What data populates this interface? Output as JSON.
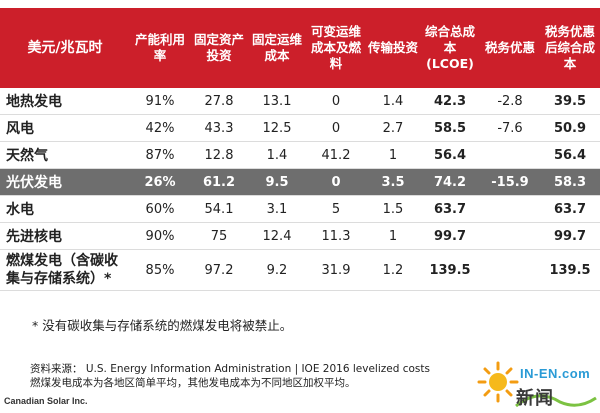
{
  "table": {
    "headers": [
      "美元/兆瓦时",
      "产能利用率",
      "固定资产投资",
      "固定运维成本",
      "可变运维成本及燃料",
      "传输投资",
      "综合总成本(LCOE)",
      "税务优惠",
      "税务优惠后综合成本"
    ],
    "rows": [
      {
        "name": "地热发电",
        "values": [
          "91%",
          "27.8",
          "13.1",
          "0",
          "1.4",
          "42.3",
          "-2.8",
          "39.5"
        ]
      },
      {
        "name": "风电",
        "values": [
          "42%",
          "43.3",
          "12.5",
          "0",
          "2.7",
          "58.5",
          "-7.6",
          "50.9"
        ]
      },
      {
        "name": "天然气",
        "values": [
          "87%",
          "12.8",
          "1.4",
          "41.2",
          "1",
          "56.4",
          "",
          "56.4"
        ]
      },
      {
        "name": "光伏发电",
        "values": [
          "26%",
          "61.2",
          "9.5",
          "0",
          "3.5",
          "74.2",
          "-15.9",
          "58.3"
        ]
      },
      {
        "name": "水电",
        "values": [
          "60%",
          "54.1",
          "3.1",
          "5",
          "1.5",
          "63.7",
          "",
          "63.7"
        ]
      },
      {
        "name": "先进核电",
        "values": [
          "90%",
          "75",
          "12.4",
          "11.3",
          "1",
          "99.7",
          "",
          "99.7"
        ]
      },
      {
        "name": "燃煤发电（含碳收集与存储系统）*",
        "values": [
          "85%",
          "97.2",
          "9.2",
          "31.9",
          "1.2",
          "139.5",
          "",
          "139.5"
        ]
      }
    ]
  },
  "footnote": "* 没有碳收集与存储系统的燃煤发电将被禁止。",
  "source_line1": "资料来源： U.S. Energy Information Administration | IOE 2016 levelized costs",
  "source_line2": "燃煤发电成本为各地区简单平均，其他发电成本为不同地区加权平均。",
  "company": "Canadian Solar Inc.",
  "logo": {
    "text": "IN-EN.com",
    "cn": "新闻"
  },
  "colors": {
    "header_bg": "#cc1f2a",
    "highlight_bg": "#6e6e6e"
  }
}
